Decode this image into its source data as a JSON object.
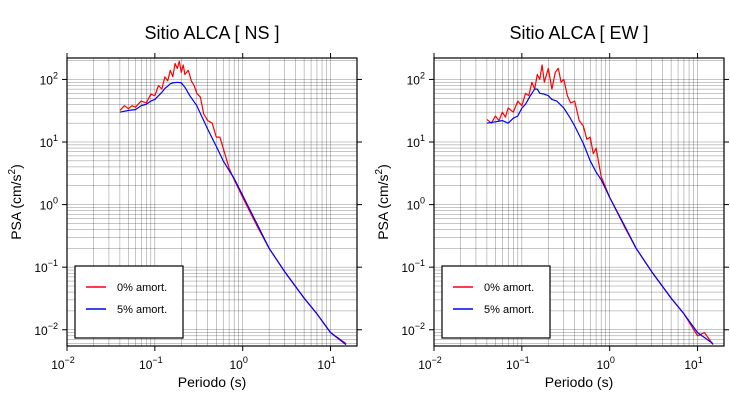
{
  "chart_data": [
    {
      "type": "line",
      "title": "Sitio ALCA [ NS ]",
      "xlabel": "Periodo (s)",
      "ylabel_main": "PSA (cm/s",
      "ylabel_sup": "2",
      "ylabel_end": ")",
      "xscale": "log",
      "yscale": "log",
      "xlim": [
        0.01,
        20
      ],
      "ylim": [
        0.0055,
        220
      ],
      "grid": true,
      "legend_position": "bottom-left",
      "x_ticks": [
        {
          "base": "10",
          "exp": "−2"
        },
        {
          "base": "10",
          "exp": "−1"
        },
        {
          "base": "10",
          "exp": "0"
        },
        {
          "base": "10",
          "exp": "1"
        }
      ],
      "y_ticks": [
        {
          "base": "10",
          "exp": "−2"
        },
        {
          "base": "10",
          "exp": "−1"
        },
        {
          "base": "10",
          "exp": "0"
        },
        {
          "base": "10",
          "exp": "1"
        },
        {
          "base": "10",
          "exp": "2"
        }
      ],
      "series": [
        {
          "name": "0% amort.",
          "color": "#ff0000",
          "x": [
            0.04,
            0.045,
            0.05,
            0.055,
            0.06,
            0.07,
            0.08,
            0.09,
            0.1,
            0.11,
            0.12,
            0.13,
            0.14,
            0.15,
            0.16,
            0.17,
            0.18,
            0.19,
            0.2,
            0.21,
            0.22,
            0.24,
            0.26,
            0.28,
            0.3,
            0.33,
            0.36,
            0.4,
            0.45,
            0.5,
            0.55,
            0.6,
            0.7,
            0.8,
            1.0,
            1.5,
            2.0,
            3.0,
            5.0,
            7.0,
            10.0,
            15.0
          ],
          "y": [
            32,
            38,
            34,
            38,
            36,
            45,
            42,
            58,
            55,
            80,
            70,
            110,
            95,
            140,
            110,
            180,
            150,
            195,
            130,
            170,
            120,
            140,
            95,
            80,
            60,
            52,
            28,
            22,
            20,
            12,
            12,
            8,
            3.8,
            2.5,
            1.3,
            0.42,
            0.2,
            0.085,
            0.032,
            0.018,
            0.009,
            0.006
          ]
        },
        {
          "name": "5% amort.",
          "color": "#0000ff",
          "x": [
            0.04,
            0.05,
            0.06,
            0.07,
            0.08,
            0.09,
            0.1,
            0.11,
            0.12,
            0.13,
            0.14,
            0.15,
            0.16,
            0.18,
            0.2,
            0.22,
            0.25,
            0.3,
            0.35,
            0.4,
            0.5,
            0.6,
            0.7,
            0.8,
            1.0,
            1.5,
            2.0,
            3.0,
            5.0,
            7.0,
            10.0,
            15.0
          ],
          "y": [
            30,
            32,
            33,
            38,
            40,
            45,
            48,
            55,
            62,
            72,
            78,
            85,
            88,
            90,
            88,
            75,
            55,
            38,
            24,
            16,
            8.5,
            5.0,
            3.5,
            2.6,
            1.4,
            0.45,
            0.2,
            0.085,
            0.032,
            0.018,
            0.009,
            0.0058
          ]
        }
      ]
    },
    {
      "type": "line",
      "title": "Sitio ALCA [ EW ]",
      "xlabel": "Periodo (s)",
      "ylabel_main": "PSA (cm/s",
      "ylabel_sup": "2",
      "ylabel_end": ")",
      "xscale": "log",
      "yscale": "log",
      "xlim": [
        0.01,
        20
      ],
      "ylim": [
        0.0055,
        220
      ],
      "grid": true,
      "legend_position": "bottom-left",
      "x_ticks": [
        {
          "base": "10",
          "exp": "−2"
        },
        {
          "base": "10",
          "exp": "−1"
        },
        {
          "base": "10",
          "exp": "0"
        },
        {
          "base": "10",
          "exp": "1"
        }
      ],
      "y_ticks": [
        {
          "base": "10",
          "exp": "−2"
        },
        {
          "base": "10",
          "exp": "−1"
        },
        {
          "base": "10",
          "exp": "0"
        },
        {
          "base": "10",
          "exp": "1"
        },
        {
          "base": "10",
          "exp": "2"
        }
      ],
      "series": [
        {
          "name": "0% amort.",
          "color": "#ff0000",
          "x": [
            0.04,
            0.045,
            0.05,
            0.055,
            0.06,
            0.065,
            0.07,
            0.08,
            0.09,
            0.1,
            0.11,
            0.12,
            0.13,
            0.14,
            0.15,
            0.16,
            0.17,
            0.18,
            0.2,
            0.22,
            0.24,
            0.26,
            0.28,
            0.3,
            0.33,
            0.36,
            0.4,
            0.45,
            0.5,
            0.55,
            0.6,
            0.65,
            0.7,
            0.8,
            1.0,
            1.5,
            2.0,
            3.0,
            5.0,
            7.0,
            10.0,
            12.0,
            15.0
          ],
          "y": [
            23,
            20,
            26,
            22,
            30,
            25,
            35,
            30,
            45,
            38,
            60,
            55,
            90,
            70,
            120,
            100,
            170,
            90,
            150,
            70,
            130,
            150,
            90,
            100,
            55,
            42,
            45,
            22,
            18,
            11,
            12,
            6.5,
            8,
            2.8,
            1.3,
            0.42,
            0.2,
            0.085,
            0.032,
            0.018,
            0.008,
            0.009,
            0.0058
          ]
        },
        {
          "name": "5% amort.",
          "color": "#0000ff",
          "x": [
            0.04,
            0.05,
            0.06,
            0.07,
            0.08,
            0.09,
            0.1,
            0.11,
            0.12,
            0.13,
            0.14,
            0.15,
            0.16,
            0.18,
            0.2,
            0.22,
            0.25,
            0.3,
            0.35,
            0.4,
            0.5,
            0.6,
            0.7,
            0.8,
            1.0,
            1.5,
            2.0,
            3.0,
            5.0,
            7.0,
            10.0,
            15.0
          ],
          "y": [
            20,
            21,
            22,
            20,
            24,
            26,
            35,
            40,
            50,
            60,
            70,
            70,
            60,
            58,
            55,
            48,
            45,
            35,
            25,
            18,
            9.5,
            5.0,
            3.3,
            2.5,
            1.3,
            0.44,
            0.2,
            0.085,
            0.032,
            0.018,
            0.009,
            0.006
          ]
        }
      ]
    }
  ]
}
